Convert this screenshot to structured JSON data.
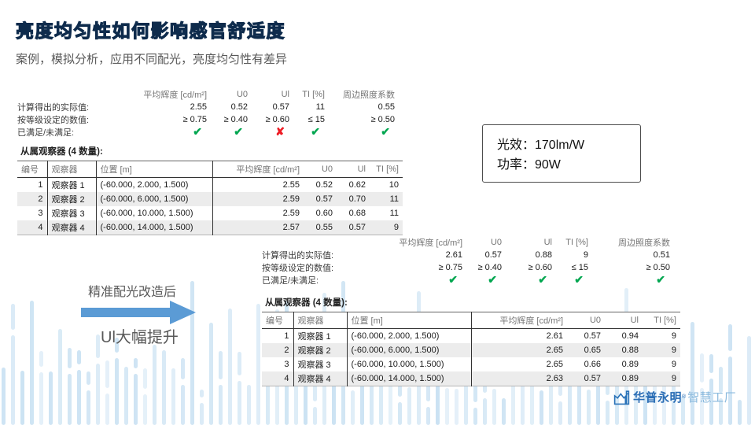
{
  "slide": {
    "title": "亮度均匀性如何影响感官舒适度",
    "subtitle": "案例，模拟分析，应用不同配光，亮度均匀性有差异"
  },
  "colors": {
    "title-fill": "#2478ab",
    "title-outline": "#0e2b4c",
    "text-gray": "#595959",
    "bar-blue": "#c7e0f2",
    "arrow-blue": "#5b9bd5",
    "check-green": "#00a650",
    "cross-red": "#ee1c25",
    "logo-blue": "#2a6db5",
    "logo-light": "#8ab9dd"
  },
  "icons": {
    "check": "✔",
    "cross": "✘"
  },
  "summary1": {
    "headers": [
      "平均辉度  [cd/m²]",
      "U0",
      "Ul",
      "TI [%]",
      "周边照度系数"
    ],
    "rows": [
      {
        "label": "计算得出的实际值:",
        "values": [
          "2.55",
          "0.52",
          "0.57",
          "11",
          "0.55"
        ]
      },
      {
        "label": "按等级设定的数值:",
        "values": [
          "≥ 0.75",
          "≥ 0.40",
          "≥ 0.60",
          "≤ 15",
          "≥ 0.50"
        ]
      }
    ],
    "status_row": {
      "label": "已满足/未满足:",
      "marks": [
        "check",
        "check",
        "cross",
        "check",
        "check"
      ]
    }
  },
  "observers1": {
    "title": "从属观察器  (4 数量):",
    "headers": [
      "编号",
      "观察器",
      "位置  [m]",
      "平均辉度  [cd/m²]",
      "U0",
      "Ul",
      "TI [%]"
    ],
    "rows": [
      [
        "1",
        "观察器  1",
        "(-60.000, 2.000, 1.500)",
        "2.55",
        "0.52",
        "0.62",
        "10"
      ],
      [
        "2",
        "观察器  2",
        "(-60.000, 6.000, 1.500)",
        "2.59",
        "0.57",
        "0.70",
        "11"
      ],
      [
        "3",
        "观察器  3",
        "(-60.000, 10.000, 1.500)",
        "2.59",
        "0.60",
        "0.68",
        "11"
      ],
      [
        "4",
        "观察器  4",
        "(-60.000, 14.000, 1.500)",
        "2.57",
        "0.55",
        "0.57",
        "9"
      ]
    ]
  },
  "spec_box": {
    "line1": "光效：170lm/W",
    "line2": "功率：90W"
  },
  "transition": {
    "top_label": "精准配光改造后",
    "bottom_label": "Ul大幅提升"
  },
  "summary2": {
    "headers": [
      "平均辉度  [cd/m²]",
      "U0",
      "Ul",
      "TI [%]",
      "周边照度系数"
    ],
    "rows": [
      {
        "label": "计算得出的实际值:",
        "values": [
          "2.61",
          "0.57",
          "0.88",
          "9",
          "0.51"
        ]
      },
      {
        "label": "按等级设定的数值:",
        "values": [
          "≥ 0.75",
          "≥ 0.40",
          "≥ 0.60",
          "≤ 15",
          "≥ 0.50"
        ]
      }
    ],
    "status_row": {
      "label": "已满足/未满足:",
      "marks": [
        "check",
        "check",
        "check",
        "check",
        "check"
      ]
    }
  },
  "observers2": {
    "title": "从属观察器  (4 数量):",
    "headers": [
      "编号",
      "观察器",
      "位置  [m]",
      "平均辉度  [cd/m²]",
      "U0",
      "Ul",
      "TI [%]"
    ],
    "rows": [
      [
        "1",
        "观察器  1",
        "(-60.000, 2.000, 1.500)",
        "2.61",
        "0.57",
        "0.94",
        "9"
      ],
      [
        "2",
        "观察器  2",
        "(-60.000, 6.000, 1.500)",
        "2.65",
        "0.65",
        "0.88",
        "9"
      ],
      [
        "3",
        "观察器  3",
        "(-60.000, 10.000, 1.500)",
        "2.65",
        "0.66",
        "0.89",
        "9"
      ],
      [
        "4",
        "观察器  4",
        "(-60.000, 14.000, 1.500)",
        "2.63",
        "0.57",
        "0.89",
        "9"
      ]
    ]
  },
  "logo": {
    "name": "华普永明",
    "reg": "®",
    "suffix": "智慧工厂"
  }
}
